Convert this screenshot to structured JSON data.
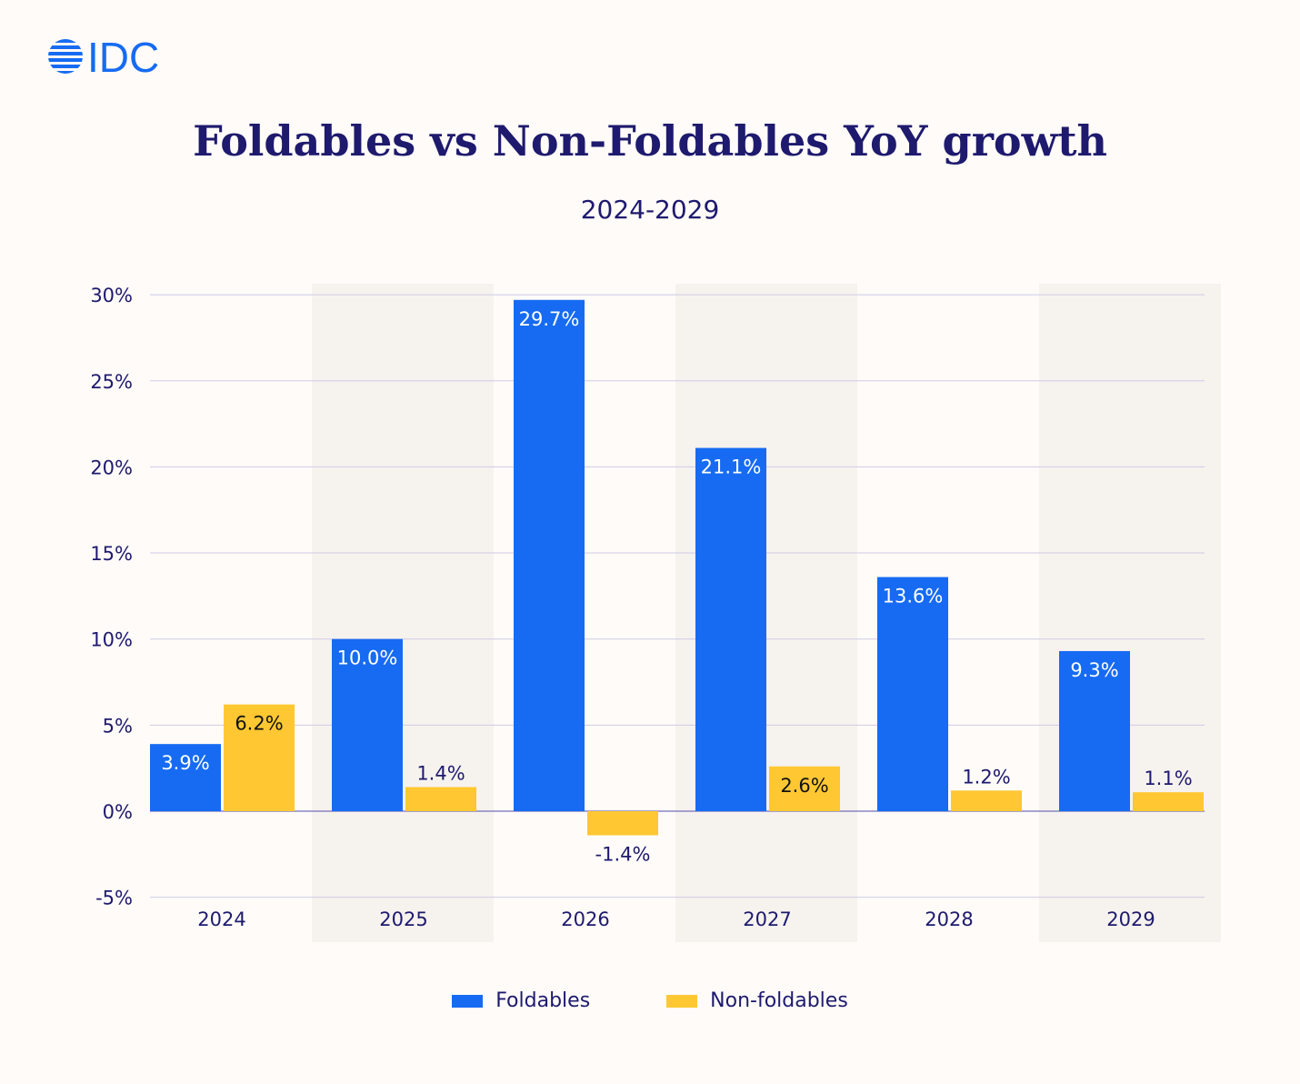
{
  "logo_text": "IDC",
  "colors": {
    "foldables": "#166bf2",
    "non_foldables": "#ffc832",
    "text": "#1e1a6e",
    "band": "#f6f2ee",
    "grid": "#cfcbe6"
  },
  "chart_data": {
    "type": "bar",
    "title": "Foldables vs Non-Foldables YoY growth",
    "subtitle": "2024-2029",
    "categories": [
      "2024",
      "2025",
      "2026",
      "2027",
      "2028",
      "2029"
    ],
    "series": [
      {
        "name": "Foldables",
        "values": [
          3.9,
          10.0,
          29.7,
          21.1,
          13.6,
          9.3
        ],
        "labels": [
          "3.9%",
          "10.0%",
          "29.7%",
          "21.1%",
          "13.6%",
          "9.3%"
        ]
      },
      {
        "name": "Non-foldables",
        "values": [
          6.2,
          1.4,
          -1.4,
          2.6,
          1.2,
          1.1
        ],
        "labels": [
          "6.2%",
          "1.4%",
          "-1.4%",
          "2.6%",
          "1.2%",
          "1.1%"
        ]
      }
    ],
    "yticks": [
      -5,
      0,
      5,
      10,
      15,
      20,
      25,
      30
    ],
    "ytick_labels": [
      "-5%",
      "0%",
      "5%",
      "10%",
      "15%",
      "20%",
      "25%",
      "30%"
    ],
    "ylim": [
      -5,
      30
    ],
    "grid": true,
    "legend_position": "bottom"
  }
}
